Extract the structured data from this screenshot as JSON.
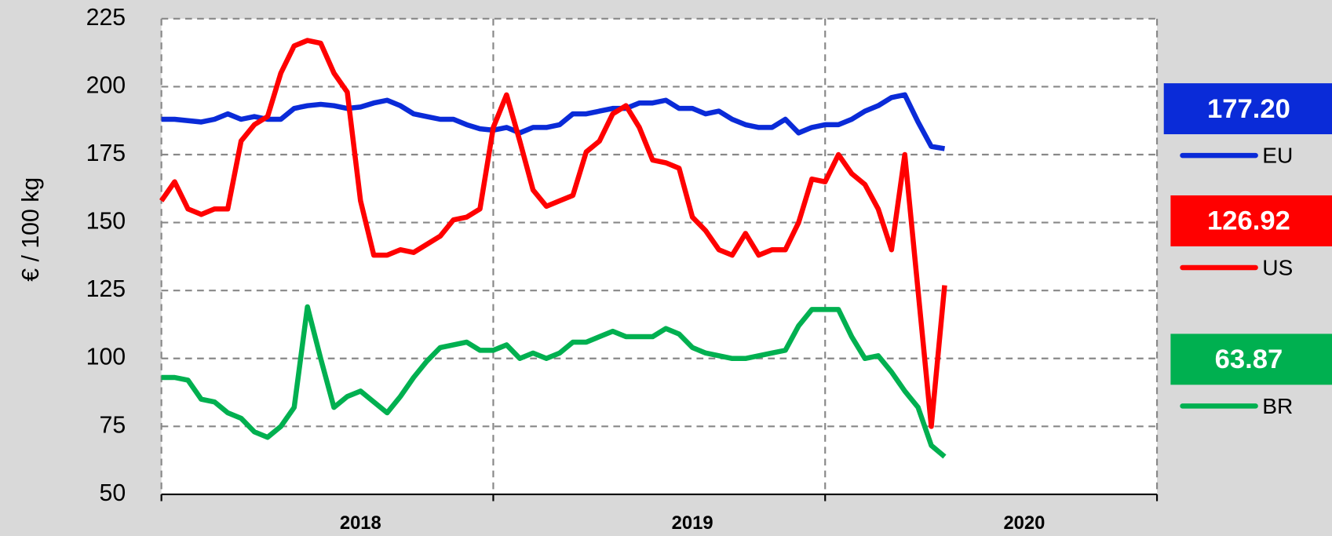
{
  "chart_data": {
    "type": "line",
    "y_label": "€ / 100 kg",
    "x": [
      2018.0,
      2018.04,
      2018.08,
      2018.12,
      2018.16,
      2018.2,
      2018.24,
      2018.28,
      2018.32,
      2018.36,
      2018.4,
      2018.44,
      2018.48,
      2018.52,
      2018.56,
      2018.6,
      2018.64,
      2018.68,
      2018.72,
      2018.76,
      2018.8,
      2018.84,
      2018.88,
      2018.92,
      2018.96,
      2019.0,
      2019.04,
      2019.08,
      2019.12,
      2019.16,
      2019.2,
      2019.24,
      2019.28,
      2019.32,
      2019.36,
      2019.4,
      2019.44,
      2019.48,
      2019.52,
      2019.56,
      2019.6,
      2019.64,
      2019.68,
      2019.72,
      2019.76,
      2019.8,
      2019.84,
      2019.88,
      2019.92,
      2019.96,
      2020.0,
      2020.04,
      2020.08,
      2020.12,
      2020.16,
      2020.2,
      2020.24,
      2020.28,
      2020.32,
      2020.36
    ],
    "year_labels": [
      "2018",
      "2019",
      "2020"
    ],
    "series": [
      {
        "name": "EU",
        "color": "#0a2bd8",
        "end_label": "177.20",
        "values": [
          188,
          188,
          187.5,
          187,
          188,
          190,
          188,
          189,
          188,
          188,
          192,
          193,
          193.5,
          193,
          192,
          192.5,
          194,
          195,
          193,
          190,
          189,
          188,
          188,
          186,
          184.5,
          184,
          185,
          183,
          185,
          185,
          186,
          190,
          190,
          191,
          192,
          192,
          194,
          194,
          195,
          192,
          192,
          190,
          191,
          188,
          186,
          185,
          185,
          188,
          183,
          185,
          186,
          186,
          188,
          191,
          193,
          196,
          197,
          187,
          178,
          177.2
        ]
      },
      {
        "name": "US",
        "color": "#ff0000",
        "end_label": "126.92",
        "values": [
          158,
          165,
          155,
          153,
          155,
          155,
          180,
          186,
          189,
          205,
          215,
          217,
          216,
          205,
          198,
          158,
          138,
          138,
          140,
          139,
          142,
          145,
          151,
          152,
          155,
          185,
          197,
          180,
          162,
          156,
          158,
          160,
          176,
          180,
          190,
          193,
          185,
          173,
          172,
          170,
          152,
          147,
          140,
          138,
          146,
          138,
          140,
          140,
          150,
          166,
          165,
          175,
          168,
          164,
          155,
          140,
          175,
          125,
          75,
          126.92
        ]
      },
      {
        "name": "BR",
        "color": "#00b050",
        "end_label": "63.87",
        "values": [
          93,
          93,
          92,
          85,
          84,
          80,
          78,
          73,
          71,
          75,
          82,
          119,
          100,
          82,
          86,
          88,
          84,
          80,
          86,
          93,
          99,
          104,
          105,
          106,
          103,
          103,
          105,
          100,
          102,
          100,
          102,
          106,
          106,
          108,
          110,
          108,
          108,
          108,
          111,
          109,
          104,
          102,
          101,
          100,
          100,
          101,
          102,
          103,
          112,
          118,
          118,
          118,
          108,
          100,
          101,
          95,
          88,
          82,
          68,
          63.87
        ]
      }
    ],
    "xlim": [
      2018,
      2021
    ],
    "xticks": [
      2018,
      2019,
      2020,
      2021
    ],
    "ylim": [
      50,
      225
    ],
    "yticks": [
      50,
      75,
      100,
      125,
      150,
      175,
      200,
      225
    ],
    "grid": true
  }
}
